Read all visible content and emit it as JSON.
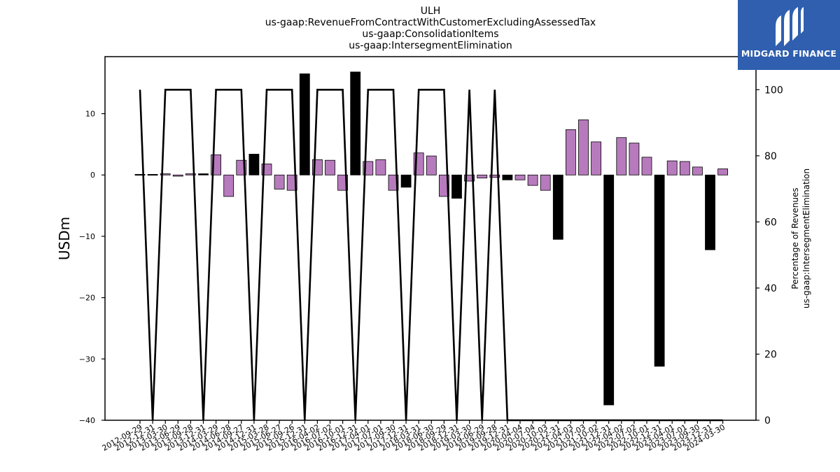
{
  "logo": {
    "text": "MIDGARD FINANCE"
  },
  "chart_data": {
    "type": "bar",
    "title_lines": [
      "ULH",
      "us-gaap:RevenueFromContractWithCustomerExcludingAssessedTax",
      "us-gaap:ConsolidationItems",
      "us-gaap:IntersegmentElimination"
    ],
    "ylabel": "USDm",
    "ylabel_right_lines": [
      "Percentage of Revenues",
      "us-gaap:IntersegmentElimination"
    ],
    "ylim": [
      -40,
      19.3
    ],
    "yticks": [
      -40,
      -30,
      -20,
      -10,
      0,
      10
    ],
    "ylim_right": [
      0,
      110
    ],
    "yticks_right": [
      0,
      20,
      40,
      60,
      80,
      100
    ],
    "colors": {
      "positive": "#b77bbd",
      "negative": "#b77bbd",
      "highlight": "#000000",
      "line": "#000000"
    },
    "categories": [
      "2012-09-29",
      "2012-12-31",
      "2013-03-30",
      "2013-06-29",
      "2013-09-28",
      "2013-12-31",
      "2014-03-29",
      "2014-06-28",
      "2014-09-27",
      "2014-12-31",
      "2015-03-28",
      "2015-06-27",
      "2015-09-26",
      "2015-12-31",
      "2016-04-02",
      "2016-07-02",
      "2016-10-01",
      "2016-12-31",
      "2017-04-01",
      "2017-07-01",
      "2017-09-30",
      "2017-12-31",
      "2018-03-31",
      "2018-06-30",
      "2018-09-29",
      "2018-12-31",
      "2019-03-30",
      "2019-06-29",
      "2019-09-28",
      "2019-12-31",
      "2020-04-04",
      "2020-07-04",
      "2020-10-03",
      "2020-12-31",
      "2021-04-03",
      "2021-07-03",
      "2021-10-02",
      "2021-12-31",
      "2022-04-02",
      "2022-07-02",
      "2022-10-01",
      "2022-12-31",
      "2023-04-01",
      "2023-07-01",
      "2023-09-30",
      "2023-12-31",
      "2024-03-30"
    ],
    "values": [
      0.1,
      0.1,
      0.2,
      -0.2,
      0.2,
      0.2,
      3.3,
      -3.5,
      2.4,
      3.4,
      1.8,
      -2.3,
      -2.5,
      16.5,
      2.5,
      2.4,
      -2.5,
      16.8,
      2.2,
      2.5,
      -2.5,
      -2.0,
      3.6,
      3.1,
      -3.5,
      -3.8,
      -1.0,
      -0.5,
      -0.4,
      -0.8,
      -0.8,
      -1.7,
      -2.5,
      -10.5,
      7.4,
      9.0,
      5.4,
      -37.5,
      6.1,
      5.2,
      2.9,
      -31.2,
      2.3,
      2.2,
      1.3,
      -12.2,
      1.0
    ],
    "highlight": [
      true,
      true,
      false,
      false,
      false,
      true,
      false,
      false,
      false,
      true,
      false,
      false,
      false,
      true,
      false,
      false,
      false,
      true,
      false,
      false,
      false,
      true,
      false,
      false,
      false,
      true,
      false,
      false,
      false,
      true,
      false,
      false,
      false,
      true,
      false,
      false,
      false,
      true,
      false,
      false,
      false,
      true,
      false,
      false,
      false,
      true,
      false
    ],
    "series_right": {
      "values": [
        100,
        0,
        100,
        100,
        100,
        0,
        100,
        100,
        100,
        0,
        100,
        100,
        100,
        0,
        100,
        100,
        100,
        0,
        100,
        100,
        100,
        0,
        100,
        100,
        100,
        0,
        100,
        0,
        100,
        0,
        0,
        0,
        0,
        0,
        0,
        0,
        0,
        0,
        0,
        0,
        0,
        0,
        0,
        0,
        0,
        0,
        0
      ]
    }
  }
}
